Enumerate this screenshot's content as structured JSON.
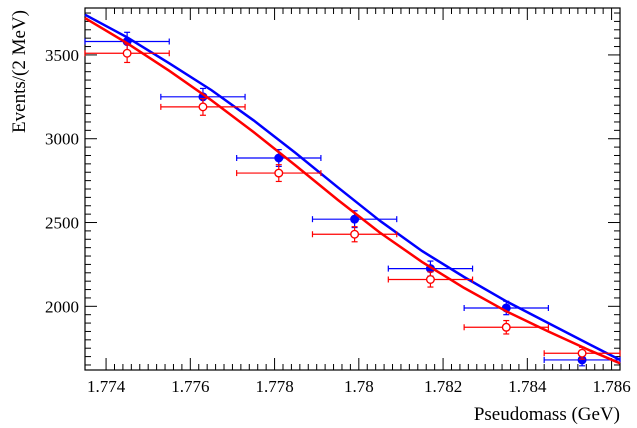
{
  "chart_data": {
    "type": "scatter",
    "title": "",
    "xlabel": "Pseudomass (GeV)",
    "ylabel": "Events/(2 MeV)",
    "xlim": [
      1.7735,
      1.7862
    ],
    "ylim": [
      1620,
      3780
    ],
    "grid": false,
    "x_ticks": [
      1.774,
      1.776,
      1.778,
      1.78,
      1.782,
      1.784,
      1.786
    ],
    "x_tick_labels": [
      "1.774",
      "1.776",
      "1.778",
      "1.78",
      "1.782",
      "1.784",
      "1.786"
    ],
    "y_ticks": [
      2000,
      2500,
      3000,
      3500
    ],
    "y_tick_labels": [
      "2000",
      "2500",
      "3000",
      "3500"
    ],
    "series": [
      {
        "color": "#0000ff",
        "marker": "filled-circle",
        "points": [
          {
            "x": 1.7745,
            "y": 3580,
            "xerr": 1.0,
            "yerr": 55
          },
          {
            "x": 1.7763,
            "y": 3250,
            "xerr": 1.0,
            "yerr": 50
          },
          {
            "x": 1.7781,
            "y": 2885,
            "xerr": 1.0,
            "yerr": 50
          },
          {
            "x": 1.7799,
            "y": 2520,
            "xerr": 1.0,
            "yerr": 50
          },
          {
            "x": 1.7817,
            "y": 2225,
            "xerr": 1.0,
            "yerr": 45
          },
          {
            "x": 1.7835,
            "y": 1990,
            "xerr": 1.0,
            "yerr": 40
          },
          {
            "x": 1.7853,
            "y": 1680,
            "xerr": 0.9,
            "yerr": 35
          }
        ],
        "curve": [
          {
            "x": 1.7735,
            "y": 3740
          },
          {
            "x": 1.7745,
            "y": 3605
          },
          {
            "x": 1.7755,
            "y": 3450
          },
          {
            "x": 1.7765,
            "y": 3290
          },
          {
            "x": 1.7775,
            "y": 3110
          },
          {
            "x": 1.7785,
            "y": 2915
          },
          {
            "x": 1.7795,
            "y": 2710
          },
          {
            "x": 1.7805,
            "y": 2510
          },
          {
            "x": 1.7815,
            "y": 2330
          },
          {
            "x": 1.7825,
            "y": 2175
          },
          {
            "x": 1.7835,
            "y": 2030
          },
          {
            "x": 1.7845,
            "y": 1900
          },
          {
            "x": 1.7855,
            "y": 1770
          },
          {
            "x": 1.7862,
            "y": 1680
          }
        ]
      },
      {
        "color": "#ff0000",
        "marker": "open-circle",
        "points": [
          {
            "x": 1.7745,
            "y": 3510,
            "xerr": 1.0,
            "yerr": 55
          },
          {
            "x": 1.7763,
            "y": 3190,
            "xerr": 1.0,
            "yerr": 50
          },
          {
            "x": 1.7781,
            "y": 2795,
            "xerr": 1.0,
            "yerr": 50
          },
          {
            "x": 1.7799,
            "y": 2430,
            "xerr": 1.0,
            "yerr": 45
          },
          {
            "x": 1.7817,
            "y": 2160,
            "xerr": 1.0,
            "yerr": 45
          },
          {
            "x": 1.7835,
            "y": 1875,
            "xerr": 1.0,
            "yerr": 40
          },
          {
            "x": 1.7853,
            "y": 1720,
            "xerr": 0.9,
            "yerr": 35
          }
        ],
        "curve": [
          {
            "x": 1.7735,
            "y": 3720
          },
          {
            "x": 1.7745,
            "y": 3570
          },
          {
            "x": 1.7755,
            "y": 3405
          },
          {
            "x": 1.7765,
            "y": 3230
          },
          {
            "x": 1.7775,
            "y": 3040
          },
          {
            "x": 1.7785,
            "y": 2840
          },
          {
            "x": 1.7795,
            "y": 2635
          },
          {
            "x": 1.7805,
            "y": 2440
          },
          {
            "x": 1.7815,
            "y": 2265
          },
          {
            "x": 1.7825,
            "y": 2110
          },
          {
            "x": 1.7835,
            "y": 1970
          },
          {
            "x": 1.7845,
            "y": 1850
          },
          {
            "x": 1.7855,
            "y": 1735
          },
          {
            "x": 1.7862,
            "y": 1660
          }
        ]
      }
    ]
  }
}
